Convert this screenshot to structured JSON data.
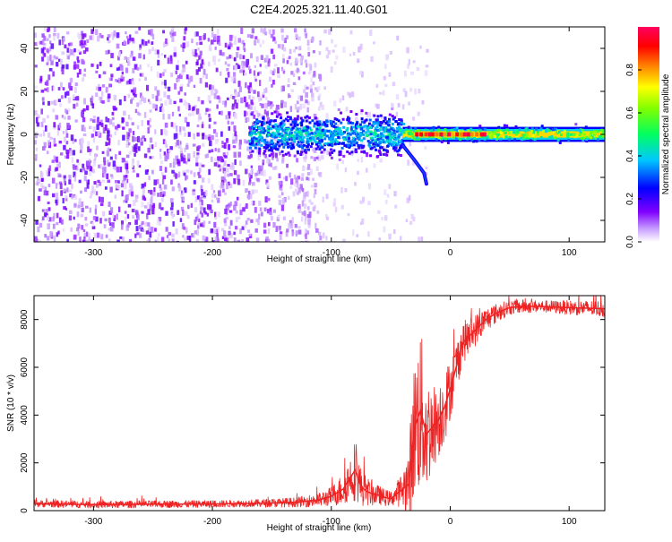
{
  "title": "C2E4.2025.321.11.40.G01",
  "chart_data": [
    {
      "type": "heatmap",
      "name": "spectrogram",
      "xlabel": "Height of straight line (km)",
      "ylabel": "Frequency (Hz)",
      "xlim": [
        -350,
        130
      ],
      "ylim": [
        -50,
        50
      ],
      "xticks": [
        -300,
        -200,
        -100,
        0,
        100
      ],
      "yticks": [
        -40,
        -20,
        0,
        20,
        40
      ],
      "colorbar": {
        "label": "Normalized spectral amplitude",
        "range": [
          0,
          1
        ],
        "ticks": [
          0,
          0.2,
          0.4,
          0.6,
          0.8
        ],
        "tick_labels": [
          "0.0",
          "0.2",
          "0.4",
          "0.6",
          "0.8"
        ],
        "colors": [
          "#ffffff",
          "#8000ff",
          "#0000ff",
          "#00ffff",
          "#00ff00",
          "#ffff00",
          "#ff8000",
          "#ff0000",
          "#ff0080"
        ]
      },
      "features": [
        {
          "kind": "noise",
          "x_range": [
            -350,
            -110
          ],
          "y_range": [
            -50,
            50
          ],
          "amplitude": 0.15
        },
        {
          "kind": "noise",
          "x_range": [
            -110,
            -20
          ],
          "y_range": [
            -50,
            50
          ],
          "amplitude": 0.04
        },
        {
          "kind": "signal_band",
          "x_range": [
            -170,
            -40
          ],
          "center": 0,
          "width": 14,
          "amplitude": 0.45
        },
        {
          "kind": "signal_band",
          "x_range": [
            -40,
            130
          ],
          "center": 0,
          "width": 5,
          "amplitude": 0.75
        },
        {
          "kind": "signal_peak",
          "x_range": [
            -30,
            30
          ],
          "center": 0,
          "width": 2,
          "amplitude": 0.95
        },
        {
          "kind": "tail",
          "x_points": [
            -40,
            -30,
            -22,
            -20
          ],
          "y_points": [
            -5,
            -12,
            -18,
            -23
          ]
        }
      ]
    },
    {
      "type": "line",
      "name": "snr",
      "xlabel": "Height of straight line (km)",
      "ylabel": "SNR (10 * v/v)",
      "xlim": [
        -350,
        130
      ],
      "ylim": [
        0,
        9000
      ],
      "xticks": [
        -300,
        -200,
        -100,
        0,
        100
      ],
      "yticks": [
        0,
        2000,
        4000,
        6000,
        8000
      ],
      "color": "#ee2222",
      "series": [
        {
          "name": "SNR",
          "x": [
            -350,
            -300,
            -250,
            -200,
            -175,
            -150,
            -130,
            -120,
            -110,
            -100,
            -90,
            -85,
            -80,
            -75,
            -70,
            -65,
            -60,
            -55,
            -50,
            -45,
            -40,
            -35,
            -30,
            -25,
            -20,
            -15,
            -10,
            -5,
            0,
            5,
            10,
            20,
            30,
            40,
            50,
            60,
            75,
            100,
            130
          ],
          "y": [
            300,
            250,
            270,
            280,
            300,
            320,
            350,
            400,
            450,
            600,
            900,
            1300,
            1700,
            1000,
            800,
            700,
            650,
            550,
            500,
            700,
            900,
            1100,
            3500,
            4200,
            3200,
            3500,
            3800,
            4300,
            5100,
            6000,
            7000,
            7500,
            8000,
            8300,
            8500,
            8550,
            8550,
            8500,
            8450
          ],
          "spread": [
            150,
            150,
            150,
            150,
            150,
            180,
            200,
            250,
            300,
            400,
            700,
            900,
            1300,
            800,
            600,
            500,
            400,
            350,
            300,
            500,
            800,
            1500,
            3000,
            3500,
            2500,
            1800,
            1600,
            1500,
            1300,
            1100,
            900,
            700,
            500,
            400,
            300,
            300,
            250,
            300,
            350
          ]
        }
      ]
    }
  ]
}
